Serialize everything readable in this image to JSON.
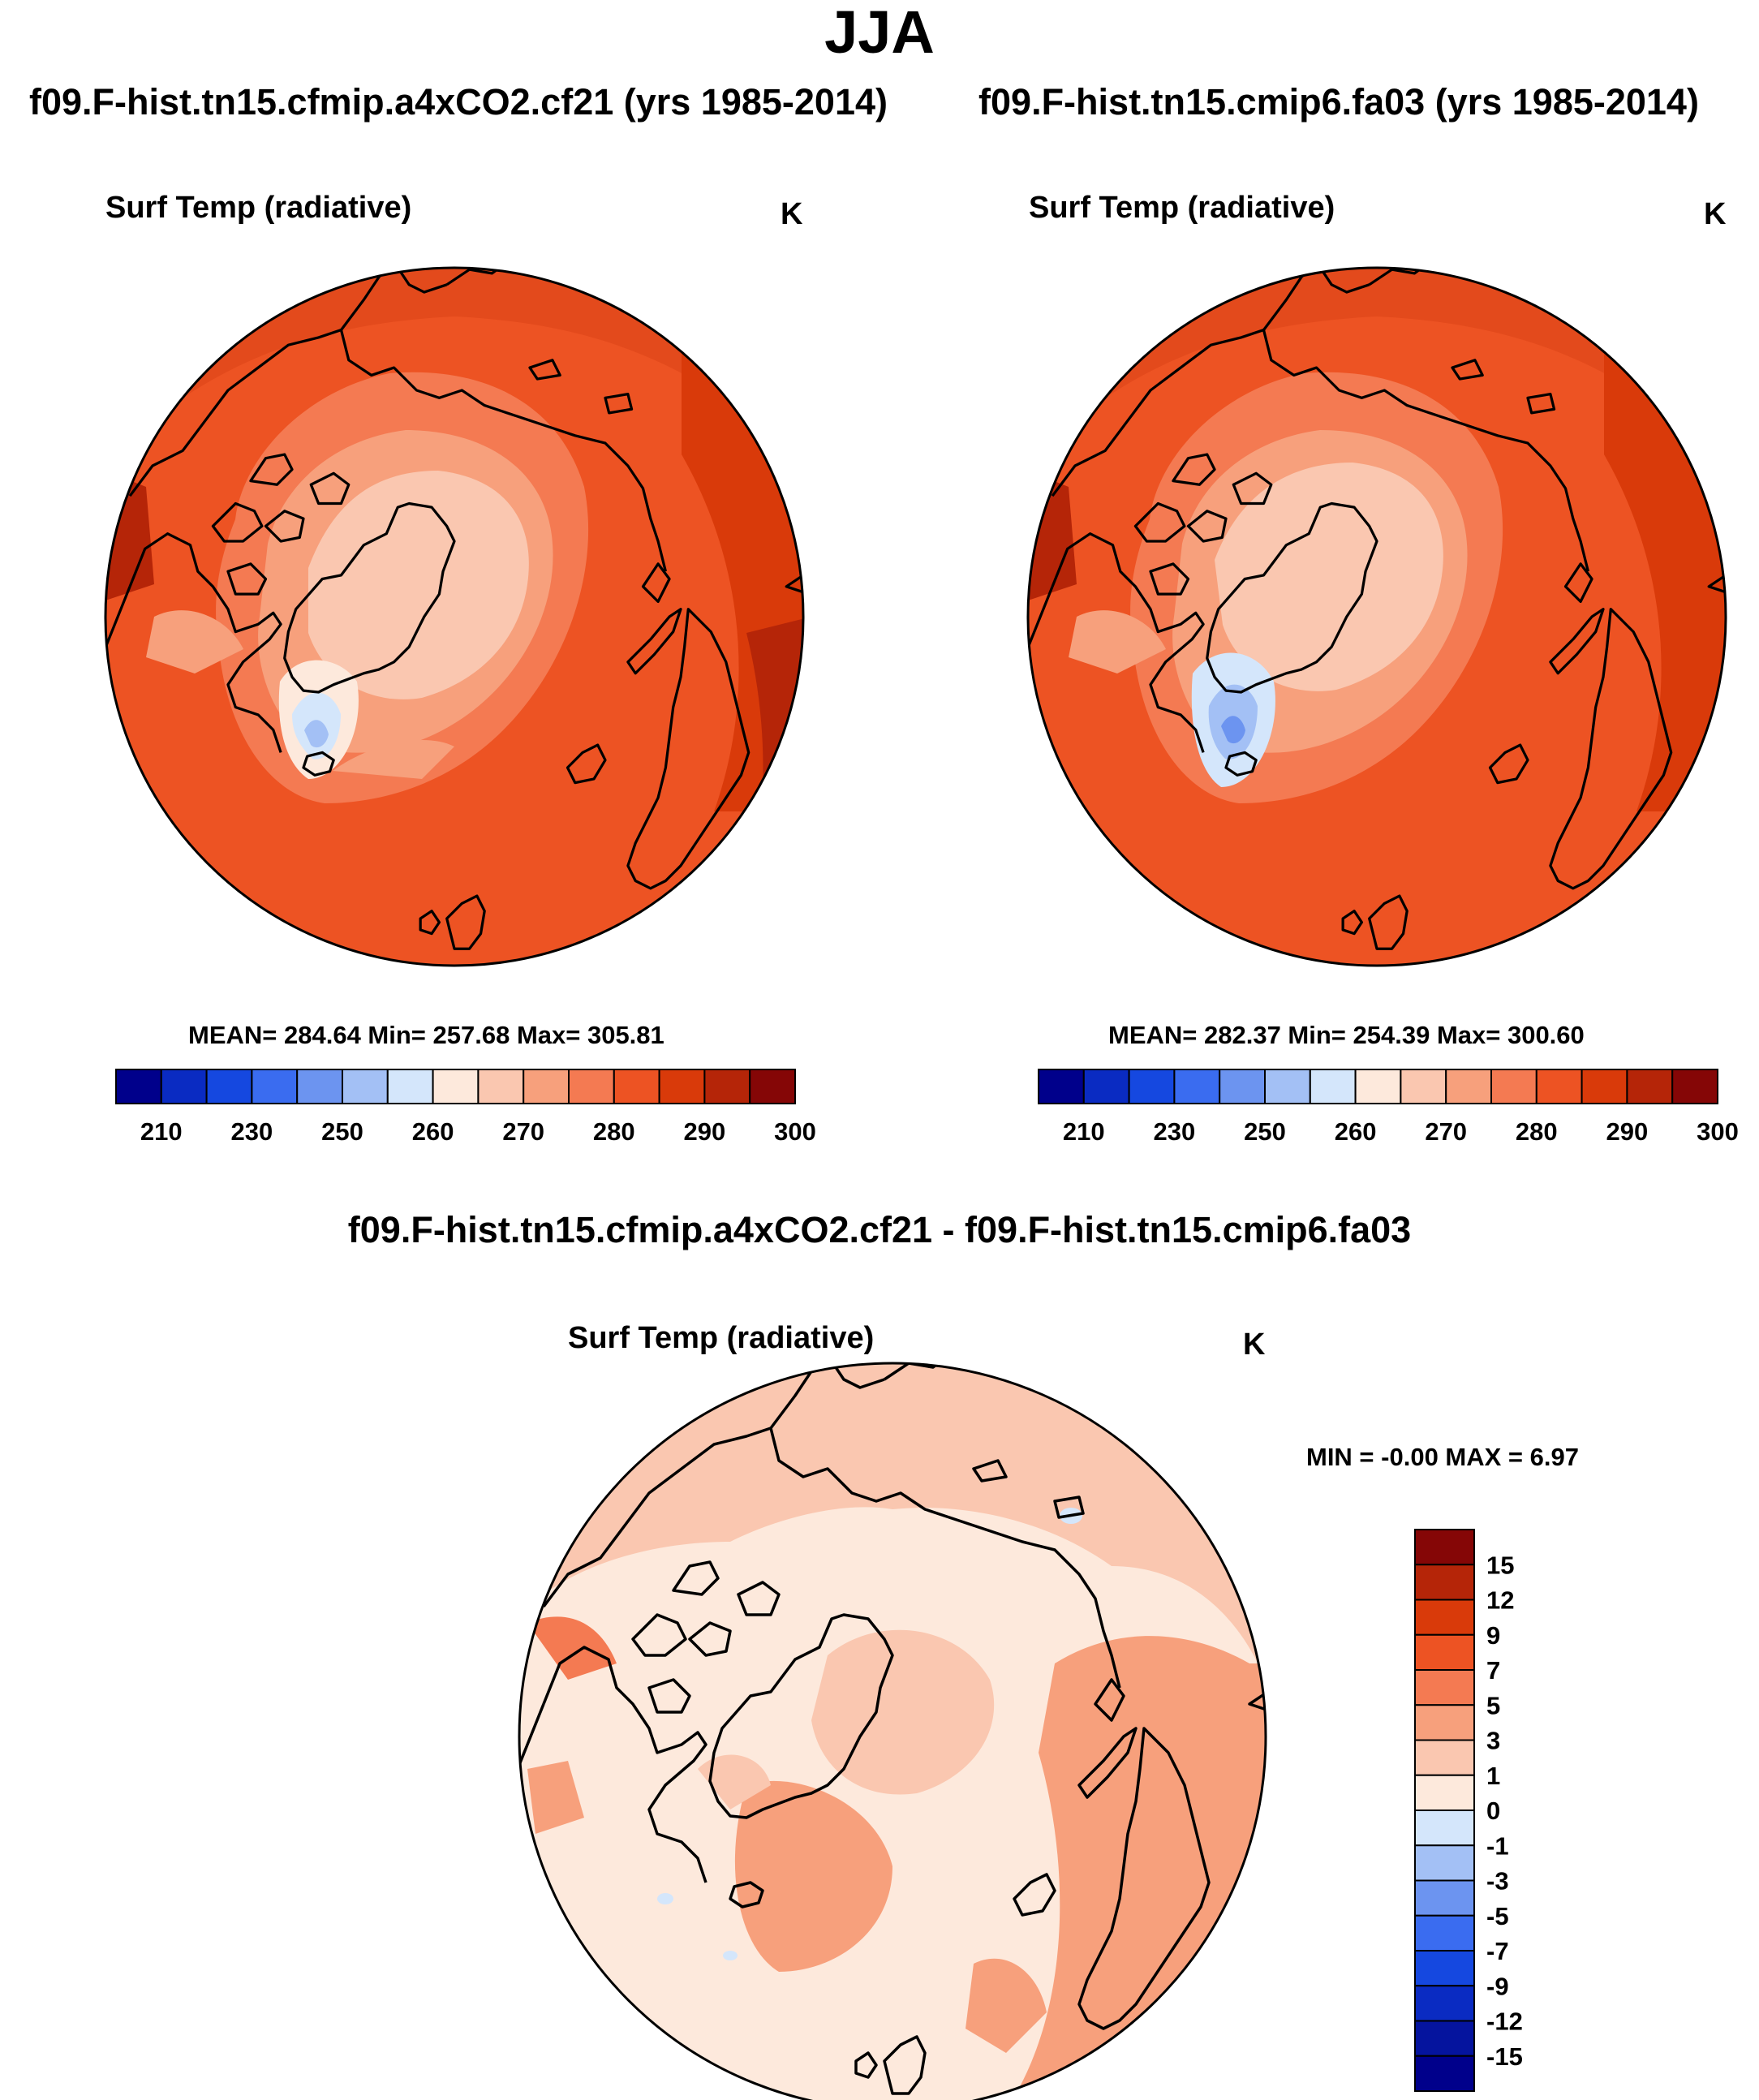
{
  "page": {
    "title": "JJA"
  },
  "panel_a": {
    "case_title": "f09.F-hist.tn15.cfmip.a4xCO2.cf21 (yrs 1985-2014)",
    "variable": "Surf Temp (radiative)",
    "units": "K",
    "stats": "MEAN= 284.64  Min= 257.68  Max= 305.81"
  },
  "panel_b": {
    "case_title": "f09.F-hist.tn15.cmip6.fa03 (yrs 1985-2014)",
    "variable": "Surf Temp (radiative)",
    "units": "K",
    "stats": "MEAN= 282.37  Min= 254.39  Max= 300.60"
  },
  "panel_diff": {
    "case_title": "f09.F-hist.tn15.cfmip.a4xCO2.cf21 - f09.F-hist.tn15.cmip6.fa03",
    "variable": "Surf Temp (radiative)",
    "units": "K",
    "stats": "MIN =  -0.00 MAX =   6.97"
  },
  "chart_data": [
    {
      "type": "heatmap",
      "projection": "north-polar-stereographic",
      "title": "Surf Temp (radiative)",
      "units": "K",
      "stats": {
        "mean": 284.64,
        "min": 257.68,
        "max": 305.81
      },
      "colorbar": {
        "orientation": "horizontal",
        "labels": [
          "210",
          "230",
          "250",
          "260",
          "270",
          "280",
          "290",
          "300"
        ],
        "colors": [
          "#00008b",
          "#0a2bc2",
          "#1548e0",
          "#3a6cf0",
          "#6c94f0",
          "#a3c0f5",
          "#d4e6fb",
          "#fde9dc",
          "#fac7b0",
          "#f7a07c",
          "#f47a52",
          "#ed5323",
          "#d93a0a",
          "#b52508",
          "#850606"
        ]
      }
    },
    {
      "type": "heatmap",
      "projection": "north-polar-stereographic",
      "title": "Surf Temp (radiative)",
      "units": "K",
      "stats": {
        "mean": 282.37,
        "min": 254.39,
        "max": 300.6
      },
      "colorbar": {
        "orientation": "horizontal",
        "labels": [
          "210",
          "230",
          "250",
          "260",
          "270",
          "280",
          "290",
          "300"
        ],
        "colors": [
          "#00008b",
          "#0a2bc2",
          "#1548e0",
          "#3a6cf0",
          "#6c94f0",
          "#a3c0f5",
          "#d4e6fb",
          "#fde9dc",
          "#fac7b0",
          "#f7a07c",
          "#f47a52",
          "#ed5323",
          "#d93a0a",
          "#b52508",
          "#850606"
        ]
      }
    },
    {
      "type": "heatmap",
      "projection": "north-polar-stereographic",
      "title": "Surf Temp (radiative)",
      "units": "K",
      "stats": {
        "min": -0.0,
        "max": 6.97
      },
      "colorbar": {
        "orientation": "vertical",
        "labels": [
          "15",
          "12",
          "9",
          "7",
          "5",
          "3",
          "1",
          "0",
          "-1",
          "-3",
          "-5",
          "-7",
          "-9",
          "-12",
          "-15"
        ],
        "colors": [
          "#850606",
          "#b52508",
          "#d93a0a",
          "#ed5323",
          "#f47a52",
          "#f7a07c",
          "#fac7b0",
          "#fde9dc",
          "#d4e6fb",
          "#a3c0f5",
          "#6c94f0",
          "#3a6cf0",
          "#1548e0",
          "#0a2bc2",
          "#05149e",
          "#00008b"
        ]
      }
    }
  ]
}
